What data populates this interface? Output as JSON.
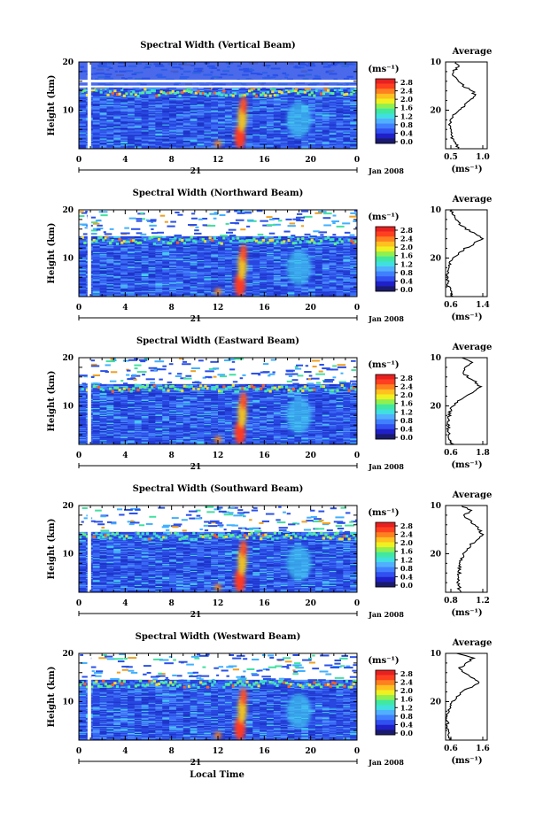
{
  "units": "(ms⁻¹)",
  "date_label": "Jan 2008",
  "day_label": "21",
  "xaxis_title": "Local Time",
  "ylabel": "Height (km)",
  "avg_title": "Average",
  "avg_xlabel": "(ms⁻¹)",
  "colors": {
    "colorbar": [
      "#1a1a6e",
      "#2020c8",
      "#3050f0",
      "#4080ff",
      "#50b0ff",
      "#40e0e0",
      "#40e8a0",
      "#90f050",
      "#f0f020",
      "#ffc020",
      "#ff8020",
      "#ff4020",
      "#e82020"
    ]
  },
  "chart_data": [
    {
      "type": "heatmap",
      "title": "Spectral Width (Vertical Beam)",
      "xlabel": "Local Time",
      "ylabel": "Height (km)",
      "x_ticks": [
        "0",
        "4",
        "8",
        "12",
        "16",
        "20",
        "0"
      ],
      "y_ticks": [
        "20",
        "10"
      ],
      "xlim": [
        0,
        24
      ],
      "ylim": [
        2,
        20
      ],
      "colorbar_ticks": [
        "2.8",
        "2.4",
        "2.0",
        "1.6",
        "1.2",
        "0.8",
        "0.4",
        "0.0"
      ],
      "profile": {
        "title": "Average",
        "x_ticks": [
          "0.5",
          "1.0"
        ],
        "xlim": [
          0.5,
          1.2
        ],
        "y_ticks": [
          "20",
          "10"
        ],
        "heights": [
          2,
          3,
          4,
          5,
          6,
          7,
          8,
          9,
          10,
          11,
          12,
          13,
          14,
          15,
          16,
          17,
          18,
          19,
          20
        ],
        "values": [
          0.72,
          0.68,
          0.62,
          0.6,
          0.58,
          0.58,
          0.6,
          0.64,
          0.72,
          0.82,
          0.9,
          1.0,
          0.95,
          0.8,
          0.72,
          0.65,
          0.62,
          0.72,
          0.66
        ]
      }
    },
    {
      "type": "heatmap",
      "title": "Spectral Width (Northward Beam)",
      "xlabel": "Local Time",
      "ylabel": "Height (km)",
      "x_ticks": [
        "0",
        "4",
        "8",
        "12",
        "16",
        "20",
        "0"
      ],
      "y_ticks": [
        "20",
        "10"
      ],
      "xlim": [
        0,
        24
      ],
      "ylim": [
        2,
        20
      ],
      "colorbar_ticks": [
        "2.8",
        "2.4",
        "2.0",
        "1.6",
        "1.2",
        "0.8",
        "0.4",
        "0.0"
      ],
      "profile": {
        "title": "Average",
        "x_ticks": [
          "0.6",
          "1.4"
        ],
        "xlim": [
          0.6,
          1.4
        ],
        "y_ticks": [
          "20",
          "10"
        ],
        "heights": [
          2,
          3,
          4,
          5,
          6,
          7,
          8,
          9,
          10,
          11,
          12,
          13,
          14,
          15,
          16,
          17,
          18,
          19,
          20
        ],
        "values": [
          0.75,
          0.7,
          0.66,
          0.64,
          0.63,
          0.63,
          0.65,
          0.68,
          0.74,
          0.85,
          0.98,
          1.15,
          1.3,
          1.18,
          1.0,
          0.88,
          0.8,
          0.74,
          0.7
        ]
      }
    },
    {
      "type": "heatmap",
      "title": "Spectral Width (Eastward Beam)",
      "xlabel": "Local Time",
      "ylabel": "Height (km)",
      "x_ticks": [
        "0",
        "4",
        "8",
        "12",
        "16",
        "20",
        "0"
      ],
      "y_ticks": [
        "20",
        "10"
      ],
      "xlim": [
        0,
        24
      ],
      "ylim": [
        2,
        20
      ],
      "colorbar_ticks": [
        "2.8",
        "2.4",
        "2.0",
        "1.6",
        "1.2",
        "0.8",
        "0.4",
        "0.0"
      ],
      "profile": {
        "title": "Average",
        "x_ticks": [
          "0.6",
          "1.8"
        ],
        "xlim": [
          0.6,
          1.8
        ],
        "y_ticks": [
          "20",
          "10"
        ],
        "heights": [
          2,
          3,
          4,
          5,
          6,
          7,
          8,
          9,
          10,
          11,
          12,
          13,
          14,
          15,
          16,
          17,
          18,
          19,
          20
        ],
        "values": [
          0.8,
          0.74,
          0.7,
          0.68,
          0.68,
          0.68,
          0.7,
          0.74,
          0.82,
          0.96,
          1.15,
          1.4,
          1.6,
          1.45,
          1.25,
          1.1,
          1.2,
          1.35,
          1.1
        ]
      }
    },
    {
      "type": "heatmap",
      "title": "Spectral Width (Southward Beam)",
      "xlabel": "Local Time",
      "ylabel": "Height (km)",
      "x_ticks": [
        "0",
        "4",
        "8",
        "12",
        "16",
        "20",
        "0"
      ],
      "y_ticks": [
        "20",
        "10"
      ],
      "xlim": [
        0,
        24
      ],
      "ylim": [
        2,
        20
      ],
      "colorbar_ticks": [
        "2.8",
        "2.4",
        "2.0",
        "1.6",
        "1.2",
        "0.8",
        "0.4",
        "0.0"
      ],
      "profile": {
        "title": "Average",
        "x_ticks": [
          "0.8",
          "1.2"
        ],
        "xlim": [
          0.6,
          1.4
        ],
        "y_ticks": [
          "20",
          "10"
        ],
        "heights": [
          2,
          3,
          4,
          5,
          6,
          7,
          8,
          9,
          10,
          11,
          12,
          13,
          14,
          15,
          16,
          17,
          18,
          19,
          20
        ],
        "values": [
          0.88,
          0.86,
          0.85,
          0.85,
          0.86,
          0.86,
          0.88,
          0.9,
          0.95,
          1.02,
          1.1,
          1.2,
          1.3,
          1.25,
          1.15,
          1.05,
          0.95,
          1.1,
          0.9
        ]
      }
    },
    {
      "type": "heatmap",
      "title": "Spectral Width (Westward Beam)",
      "xlabel": "Local Time",
      "ylabel": "Height (km)",
      "x_ticks": [
        "0",
        "4",
        "8",
        "12",
        "16",
        "20",
        "0"
      ],
      "y_ticks": [
        "20",
        "10"
      ],
      "xlim": [
        0,
        24
      ],
      "ylim": [
        2,
        20
      ],
      "colorbar_ticks": [
        "2.8",
        "2.4",
        "2.0",
        "1.6",
        "1.2",
        "0.8",
        "0.4",
        "0.0"
      ],
      "profile": {
        "title": "Average",
        "x_ticks": [
          "0.6",
          "1.6"
        ],
        "xlim": [
          0.6,
          1.6
        ],
        "y_ticks": [
          "20",
          "10"
        ],
        "heights": [
          2,
          3,
          4,
          5,
          6,
          7,
          8,
          9,
          10,
          11,
          12,
          13,
          14,
          15,
          16,
          17,
          18,
          19,
          20
        ],
        "values": [
          0.72,
          0.68,
          0.66,
          0.64,
          0.64,
          0.64,
          0.66,
          0.7,
          0.76,
          0.88,
          1.0,
          1.2,
          1.42,
          1.25,
          1.05,
          0.95,
          1.1,
          1.25,
          0.9
        ]
      }
    }
  ]
}
